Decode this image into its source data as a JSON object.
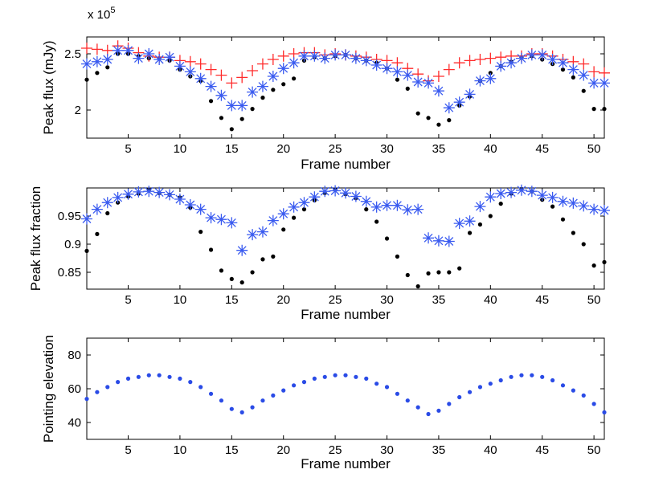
{
  "colors": {
    "black": "#000000",
    "blue": "#3a5bf0",
    "red": "#ff2b2b",
    "dot_blue": "#2a4be6"
  },
  "chart_data": [
    {
      "type": "scatter",
      "xlabel": "Frame number",
      "ylabel": "Peak flux (mJy)",
      "exponent_label": "x 10",
      "exponent_power": "5",
      "xlim": [
        1,
        51
      ],
      "ylim": [
        1.75,
        2.65
      ],
      "xticks": [
        5,
        10,
        15,
        20,
        25,
        30,
        35,
        40,
        45,
        50
      ],
      "yticks": [
        2,
        2.5
      ],
      "series": [
        {
          "name": "black dots",
          "marker": "dot",
          "color": "#000000",
          "x": [
            1,
            2,
            3,
            4,
            5,
            6,
            7,
            8,
            9,
            10,
            11,
            12,
            13,
            14,
            15,
            16,
            17,
            18,
            19,
            20,
            21,
            22,
            23,
            24,
            25,
            26,
            27,
            28,
            29,
            30,
            31,
            32,
            33,
            34,
            35,
            36,
            37,
            38,
            39,
            40,
            41,
            42,
            43,
            44,
            45,
            46,
            47,
            48,
            49,
            50,
            51
          ],
          "y": [
            2.27,
            2.33,
            2.38,
            2.5,
            2.5,
            2.48,
            2.46,
            2.46,
            2.44,
            2.36,
            2.3,
            2.26,
            2.08,
            1.93,
            1.83,
            1.92,
            2.01,
            2.11,
            2.18,
            2.23,
            2.28,
            2.44,
            2.47,
            2.46,
            2.48,
            2.49,
            2.46,
            2.44,
            2.42,
            2.37,
            2.27,
            2.19,
            1.97,
            1.93,
            1.87,
            1.91,
            2.04,
            2.12,
            2.26,
            2.33,
            2.39,
            2.43,
            2.47,
            2.48,
            2.45,
            2.41,
            2.36,
            2.29,
            2.17,
            2.01,
            2.01
          ]
        },
        {
          "name": "red plus",
          "marker": "plus",
          "color": "#ff2b2b",
          "x": [
            1,
            2,
            3,
            4,
            5,
            6,
            7,
            8,
            9,
            10,
            11,
            12,
            13,
            14,
            15,
            16,
            17,
            18,
            19,
            20,
            21,
            22,
            23,
            24,
            25,
            26,
            27,
            28,
            29,
            30,
            31,
            32,
            33,
            34,
            35,
            36,
            37,
            38,
            39,
            40,
            41,
            42,
            43,
            44,
            45,
            46,
            47,
            48,
            49,
            50,
            51
          ],
          "y": [
            2.55,
            2.54,
            2.53,
            2.57,
            2.55,
            2.51,
            2.48,
            2.47,
            2.47,
            2.44,
            2.43,
            2.41,
            2.36,
            2.31,
            2.24,
            2.29,
            2.35,
            2.41,
            2.45,
            2.48,
            2.5,
            2.51,
            2.51,
            2.49,
            2.5,
            2.49,
            2.48,
            2.47,
            2.45,
            2.44,
            2.42,
            2.37,
            2.32,
            2.26,
            2.3,
            2.36,
            2.42,
            2.44,
            2.45,
            2.46,
            2.47,
            2.48,
            2.48,
            2.5,
            2.5,
            2.48,
            2.45,
            2.43,
            2.41,
            2.34,
            2.33
          ]
        },
        {
          "name": "blue asterisk",
          "marker": "asterisk",
          "color": "#3a5bf0",
          "x": [
            1,
            2,
            3,
            4,
            5,
            6,
            7,
            8,
            9,
            10,
            11,
            12,
            13,
            14,
            15,
            16,
            17,
            18,
            19,
            20,
            21,
            22,
            23,
            24,
            25,
            26,
            27,
            28,
            29,
            30,
            31,
            32,
            33,
            34,
            35,
            36,
            37,
            38,
            39,
            40,
            41,
            42,
            43,
            44,
            45,
            46,
            47,
            48,
            49,
            50,
            51
          ],
          "y": [
            2.41,
            2.43,
            2.45,
            2.53,
            2.53,
            2.46,
            2.5,
            2.45,
            2.47,
            2.39,
            2.34,
            2.28,
            2.21,
            2.13,
            2.04,
            2.04,
            2.16,
            2.21,
            2.3,
            2.37,
            2.42,
            2.48,
            2.48,
            2.46,
            2.49,
            2.49,
            2.46,
            2.44,
            2.4,
            2.37,
            2.34,
            2.31,
            2.25,
            2.24,
            2.17,
            2.02,
            2.07,
            2.14,
            2.26,
            2.28,
            2.39,
            2.42,
            2.46,
            2.49,
            2.49,
            2.45,
            2.42,
            2.36,
            2.31,
            2.24,
            2.24
          ]
        }
      ]
    },
    {
      "type": "scatter",
      "xlabel": "Frame number",
      "ylabel": "Peak flux fraction",
      "xlim": [
        1,
        51
      ],
      "ylim": [
        0.82,
        1.0
      ],
      "xticks": [
        5,
        10,
        15,
        20,
        25,
        30,
        35,
        40,
        45,
        50
      ],
      "yticks": [
        0.85,
        0.9,
        0.95
      ],
      "series": [
        {
          "name": "black dots",
          "marker": "dot",
          "color": "#000000",
          "x": [
            1,
            2,
            3,
            4,
            5,
            6,
            7,
            8,
            9,
            10,
            11,
            12,
            13,
            14,
            15,
            16,
            17,
            18,
            19,
            20,
            21,
            22,
            23,
            24,
            25,
            26,
            27,
            28,
            29,
            30,
            31,
            32,
            33,
            34,
            35,
            36,
            37,
            38,
            39,
            40,
            41,
            42,
            43,
            44,
            45,
            46,
            47,
            48,
            49,
            50,
            51
          ],
          "y": [
            0.888,
            0.918,
            0.955,
            0.974,
            0.985,
            0.99,
            0.997,
            0.991,
            0.988,
            0.983,
            0.965,
            0.922,
            0.89,
            0.853,
            0.838,
            0.832,
            0.85,
            0.873,
            0.878,
            0.926,
            0.947,
            0.962,
            0.978,
            0.991,
            0.997,
            0.989,
            0.982,
            0.962,
            0.94,
            0.91,
            0.878,
            0.845,
            0.825,
            0.848,
            0.85,
            0.85,
            0.857,
            0.92,
            0.935,
            0.95,
            0.972,
            0.99,
            0.998,
            0.994,
            0.979,
            0.967,
            0.944,
            0.92,
            0.9,
            0.862,
            0.868
          ]
        },
        {
          "name": "blue asterisk",
          "marker": "asterisk",
          "color": "#3a5bf0",
          "x": [
            1,
            2,
            3,
            4,
            5,
            6,
            7,
            8,
            9,
            10,
            11,
            12,
            13,
            14,
            15,
            16,
            17,
            18,
            19,
            20,
            21,
            22,
            23,
            24,
            25,
            26,
            27,
            28,
            29,
            30,
            31,
            32,
            33,
            34,
            35,
            36,
            37,
            38,
            39,
            40,
            41,
            42,
            43,
            44,
            45,
            46,
            47,
            48,
            49,
            50,
            51
          ],
          "y": [
            0.945,
            0.962,
            0.974,
            0.983,
            0.989,
            0.993,
            0.994,
            0.992,
            0.988,
            0.98,
            0.97,
            0.962,
            0.947,
            0.944,
            0.938,
            0.889,
            0.917,
            0.922,
            0.942,
            0.954,
            0.966,
            0.974,
            0.984,
            0.994,
            0.995,
            0.991,
            0.985,
            0.976,
            0.966,
            0.969,
            0.969,
            0.961,
            0.962,
            0.911,
            0.906,
            0.905,
            0.937,
            0.941,
            0.967,
            0.984,
            0.99,
            0.992,
            0.996,
            0.994,
            0.987,
            0.983,
            0.976,
            0.973,
            0.968,
            0.962,
            0.96
          ]
        }
      ]
    },
    {
      "type": "scatter",
      "xlabel": "Frame number",
      "ylabel": "Pointing elevation",
      "xlim": [
        1,
        51
      ],
      "ylim": [
        30,
        90
      ],
      "xticks": [
        5,
        10,
        15,
        20,
        25,
        30,
        35,
        40,
        45,
        50
      ],
      "yticks": [
        40,
        60,
        80
      ],
      "series": [
        {
          "name": "blue dots",
          "marker": "dot",
          "color": "#2a4be6",
          "x": [
            1,
            2,
            3,
            4,
            5,
            6,
            7,
            8,
            9,
            10,
            11,
            12,
            13,
            14,
            15,
            16,
            17,
            18,
            19,
            20,
            21,
            22,
            23,
            24,
            25,
            26,
            27,
            28,
            29,
            30,
            31,
            32,
            33,
            34,
            35,
            36,
            37,
            38,
            39,
            40,
            41,
            42,
            43,
            44,
            45,
            46,
            47,
            48,
            49,
            50,
            51
          ],
          "y": [
            54,
            58,
            61,
            64,
            66,
            67,
            68,
            68,
            67,
            66,
            64,
            61,
            57,
            53,
            48,
            46,
            49,
            53,
            56,
            59,
            62,
            64,
            66,
            67,
            68,
            68,
            67,
            66,
            63,
            61,
            57,
            53,
            49,
            45,
            47,
            51,
            55,
            58,
            61,
            63,
            65,
            67,
            68,
            68,
            67,
            65,
            62,
            59,
            56,
            51,
            46
          ]
        }
      ]
    }
  ]
}
